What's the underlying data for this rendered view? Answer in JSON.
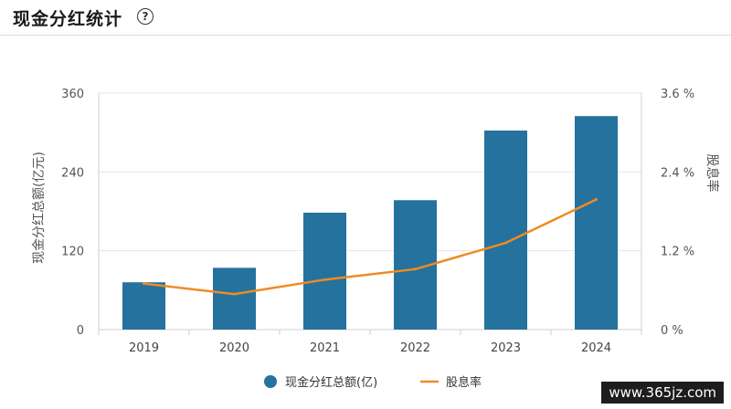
{
  "header": {
    "title": "现金分红统计",
    "help_icon": "question-circle-icon",
    "help_glyph": "?"
  },
  "chart_data": {
    "type": "bar",
    "categories": [
      "2019",
      "2020",
      "2021",
      "2022",
      "2023",
      "2024"
    ],
    "series": [
      {
        "name": "现金分红总额(亿)",
        "type": "bar",
        "axis": "left",
        "color": "#24729d",
        "values": [
          72,
          94,
          178,
          197,
          303,
          325
        ]
      },
      {
        "name": "股息率",
        "type": "line",
        "axis": "right",
        "color": "#f08a24",
        "values": [
          0.7,
          0.54,
          0.76,
          0.92,
          1.32,
          1.98
        ]
      }
    ],
    "ylabel": "现金分红总额(亿元)",
    "y2label": "股息率",
    "ylim": [
      0,
      360
    ],
    "y2lim": [
      0,
      3.6
    ],
    "yticks": [
      "0",
      "120",
      "240",
      "360"
    ],
    "y2ticks": [
      "0 %",
      "1.2 %",
      "2.4 %",
      "3.6 %"
    ],
    "grid": true,
    "legend_position": "bottom"
  },
  "watermark": "www.365jz.com"
}
